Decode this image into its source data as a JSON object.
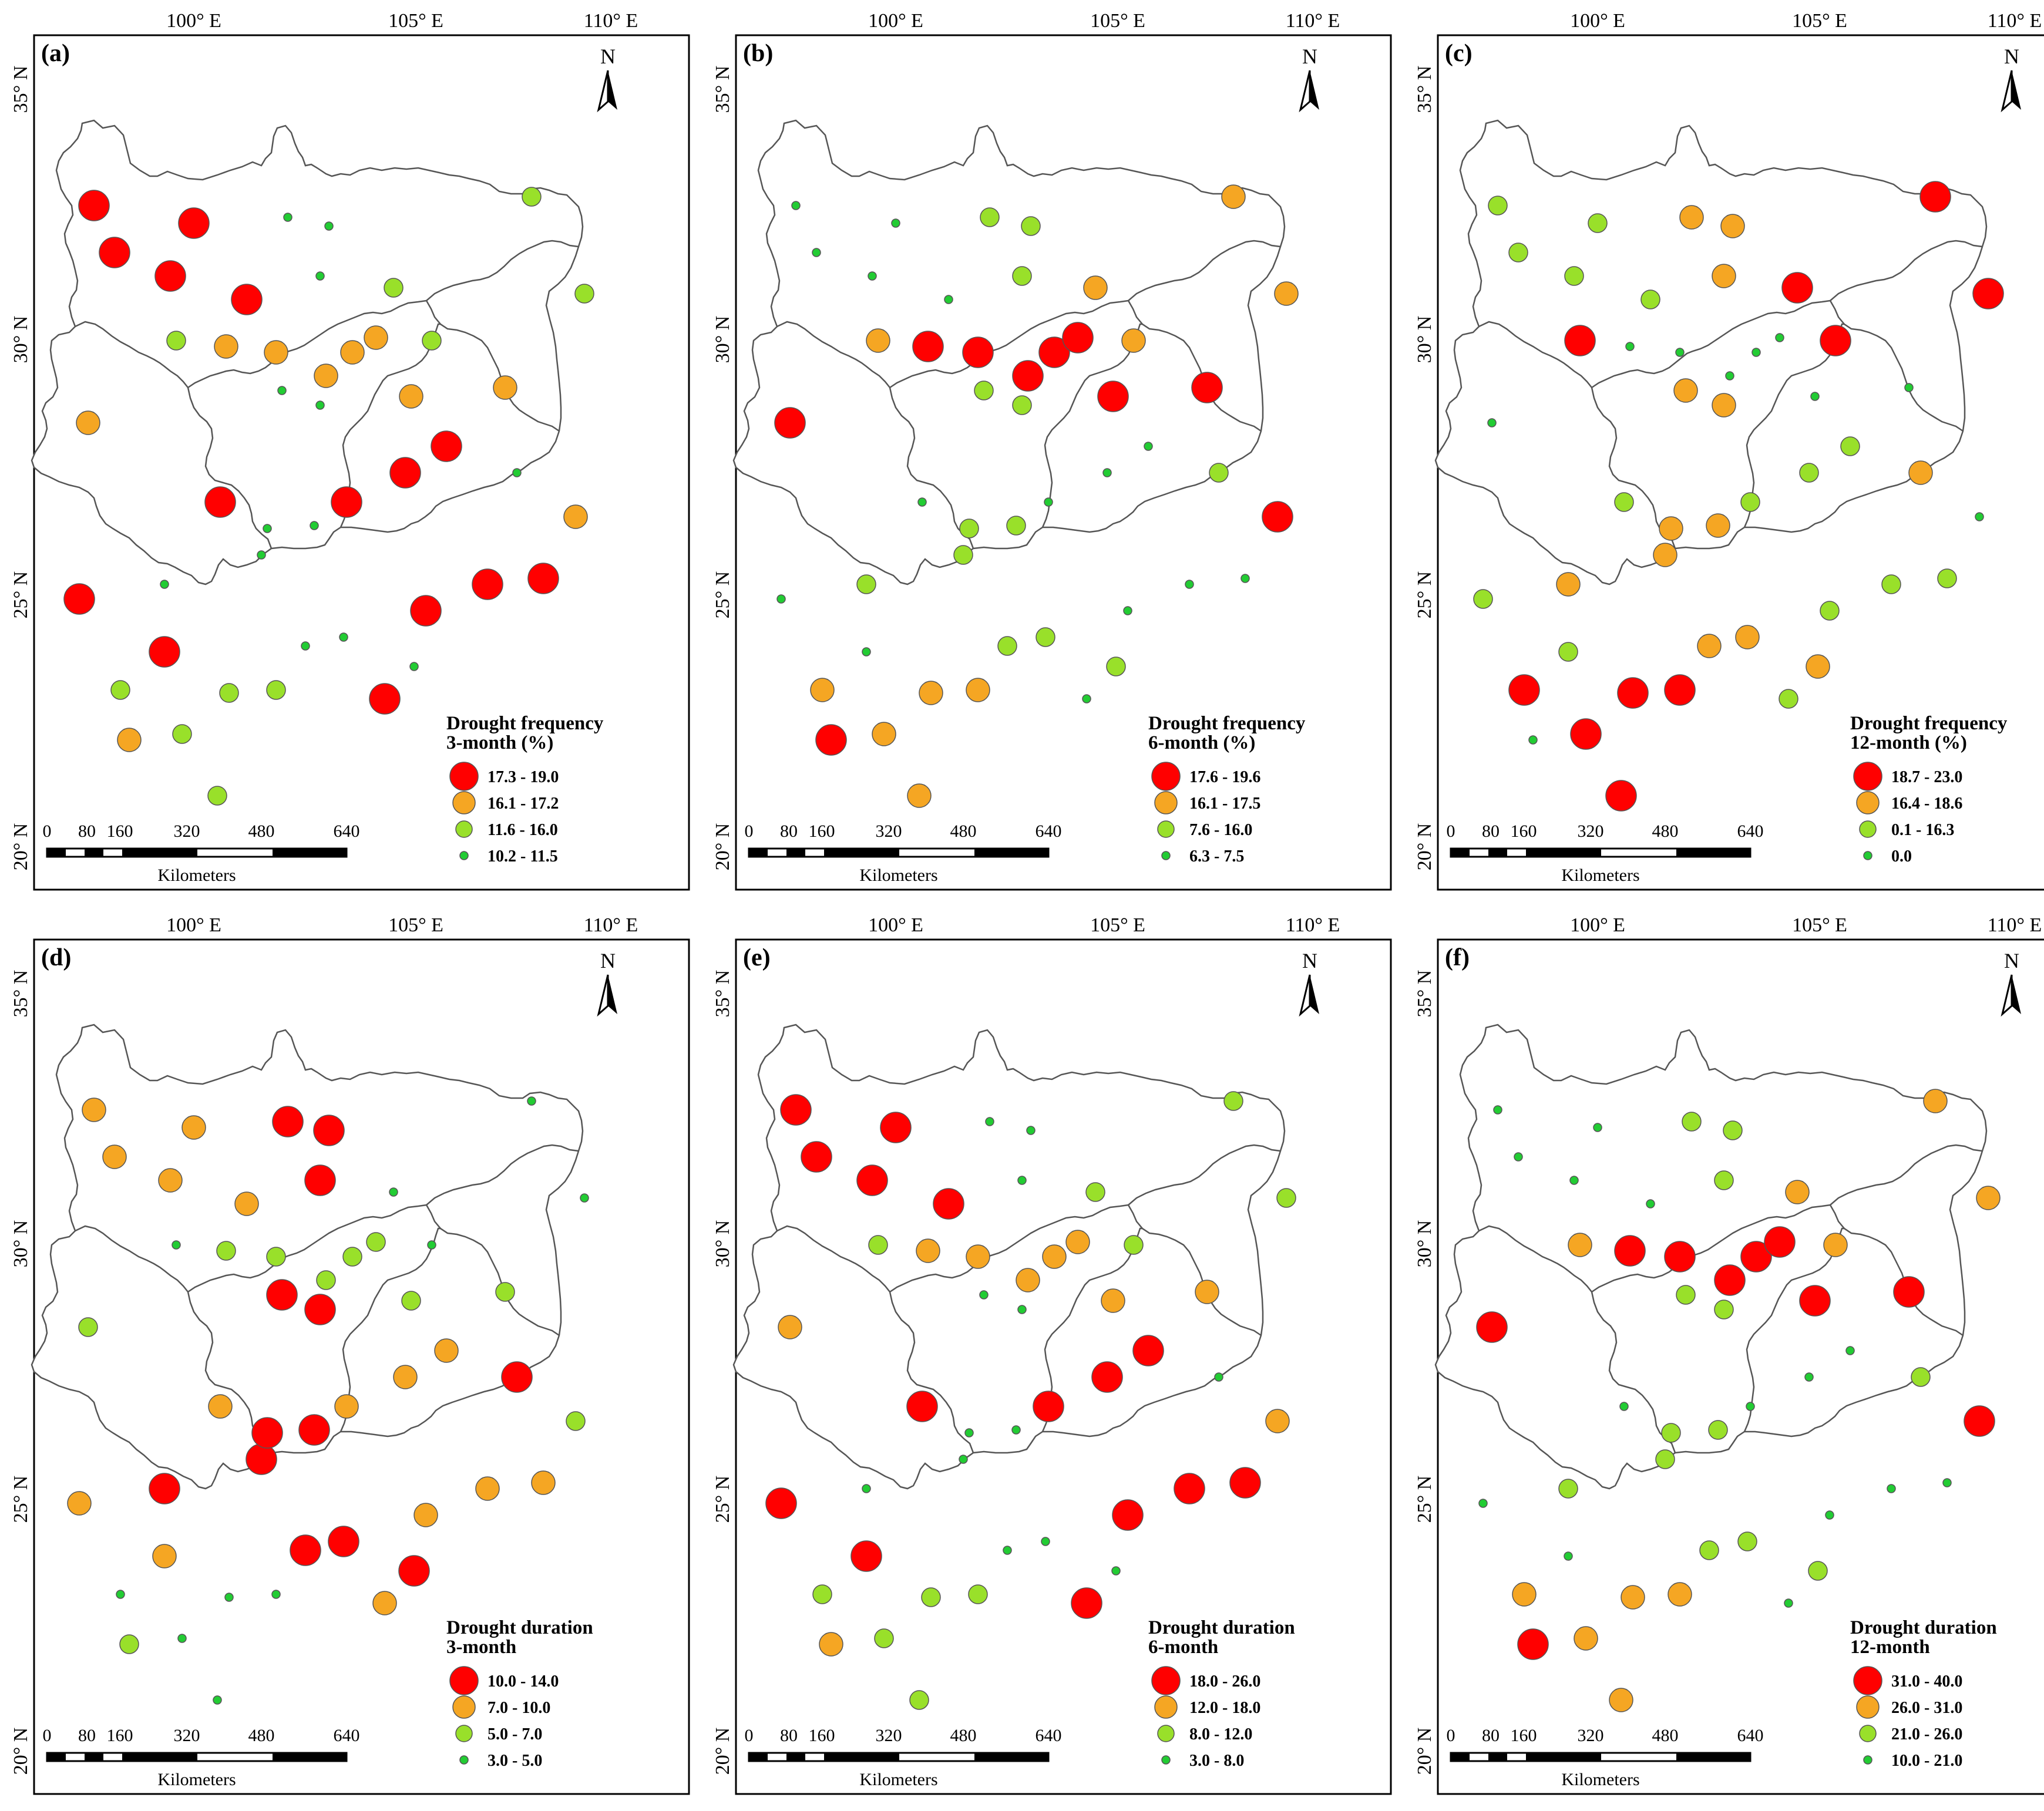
{
  "figure": {
    "colors": {
      "red": "#ff0000",
      "orange": "#f5a623",
      "lightgreen": "#99e02a",
      "green": "#22cc33",
      "border": "#555555",
      "frame": "#000000"
    },
    "axes": {
      "lon_labels": [
        "100° E",
        "105° E",
        "110° E"
      ],
      "lat_labels": [
        "35° N",
        "30° N",
        "25° N",
        "20° N"
      ]
    },
    "north_label": "N",
    "scale": {
      "ticks": [
        "0",
        "80",
        "160",
        "320",
        "480",
        "640"
      ],
      "unit": "Kilometers"
    },
    "panels": [
      {
        "id": "a",
        "label": "(a)",
        "legend_title_1": "Drought frequency",
        "legend_title_2": "3-month (%)",
        "legend": [
          "17.3 - 19.0",
          "16.1 - 17.2",
          "11.6 - 16.0",
          "10.2 - 11.5"
        ]
      },
      {
        "id": "b",
        "label": "(b)",
        "legend_title_1": "Drought frequency",
        "legend_title_2": "6-month (%)",
        "legend": [
          "17.6 - 19.6",
          "16.1 - 17.5",
          "7.6 - 16.0",
          "6.3 - 7.5"
        ]
      },
      {
        "id": "c",
        "label": "(c)",
        "legend_title_1": "Drought frequency",
        "legend_title_2": "12-month (%)",
        "legend": [
          "18.7 - 23.0",
          "16.4 - 18.6",
          "0.1 - 16.3",
          "0.0"
        ]
      },
      {
        "id": "d",
        "label": "(d)",
        "legend_title_1": "Drought duration",
        "legend_title_2": "3-month",
        "legend": [
          "10.0 - 14.0",
          "7.0 - 10.0",
          "5.0 - 7.0",
          "3.0 - 5.0"
        ]
      },
      {
        "id": "e",
        "label": "(e)",
        "legend_title_1": "Drought duration",
        "legend_title_2": "6-month",
        "legend": [
          "18.0 - 26.0",
          "12.0 - 18.0",
          "8.0 - 12.0",
          "3.0 - 8.0"
        ]
      },
      {
        "id": "f",
        "label": "(f)",
        "legend_title_1": "Drought duration",
        "legend_title_2": "12-month",
        "legend": [
          "31.0 - 40.0",
          "26.0 - 31.0",
          "21.0 - 26.0",
          "10.0 - 21.0"
        ]
      }
    ]
  }
}
